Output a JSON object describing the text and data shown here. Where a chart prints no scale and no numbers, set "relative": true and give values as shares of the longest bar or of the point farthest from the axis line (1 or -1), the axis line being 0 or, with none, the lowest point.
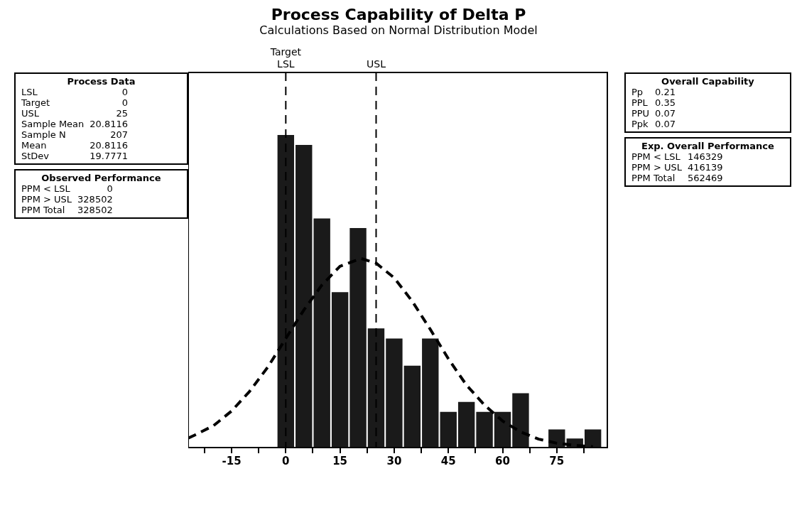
{
  "chart_data": {
    "type": "histogram",
    "title": "Process Capability of Delta P",
    "subtitle": "Calculations Based on Normal Distribution Model",
    "bins": [
      -2.5,
      2.5,
      7.5,
      12.5,
      17.5,
      22.5,
      27.5,
      32.5,
      37.5,
      42.5,
      47.5,
      52.5,
      57.5,
      62.5,
      67.5,
      72.5,
      77.5,
      82.5,
      87.5
    ],
    "values": [
      1,
      0.968,
      0.733,
      0.497,
      0.702,
      0.381,
      0.349,
      0.262,
      0.349,
      0.114,
      0.146,
      0.114,
      0.114,
      0.174,
      0,
      0.058,
      0.029,
      0.058
    ],
    "color": "#1a1a1a",
    "relative": true,
    "series": [
      {
        "type": "line",
        "color": "#000000",
        "line_style": "dashed",
        "x": [
          -27,
          -25,
          -20,
          -15,
          -10,
          -5,
          0,
          5,
          10,
          15,
          20.8,
          25,
          30,
          35,
          40,
          45,
          50,
          55,
          60,
          65,
          70,
          75,
          80,
          85
        ],
        "values": [
          0.03,
          0.041,
          0.07,
          0.117,
          0.18,
          0.257,
          0.349,
          0.44,
          0.52,
          0.58,
          0.605,
          0.59,
          0.543,
          0.468,
          0.378,
          0.284,
          0.2,
          0.136,
          0.085,
          0.05,
          0.027,
          0.014,
          0.007,
          0.003
        ]
      }
    ],
    "xlim": [
      -27,
      89
    ],
    "xticks": [
      {
        "value": -22.5,
        "label": null
      },
      -15,
      {
        "value": -7.5,
        "label": null
      },
      0,
      {
        "value": 7.5,
        "label": null
      },
      15,
      {
        "value": 22.5,
        "label": null
      },
      30,
      {
        "value": 37.5,
        "label": null
      },
      45,
      {
        "value": 52.5,
        "label": null
      },
      60,
      {
        "value": 67.5,
        "label": null
      },
      75,
      {
        "value": 82.5,
        "label": null
      }
    ],
    "ref_lines": [
      {
        "axis": "x",
        "value": 0,
        "label": "LSL",
        "line_style": "dashed"
      },
      {
        "axis": "x",
        "value": 25,
        "label": "USL",
        "line_style": "dashed"
      }
    ],
    "grid": false,
    "legend": false,
    "annotations": [
      "Target",
      "Process Data\nLSL\t0\nTarget\t0\nUSL\t25\nSample Mean\t20.8116\nSample N\t207\nMean\t20.8116\nStDev\t19.7771",
      "Observed Performance\nPPM < LSL\t0\nPPM > USL\t328502\nPPM Total\t328502",
      "Overall Capability\nPp\t0.21\nPPL\t0.35\nPPU\t0.07\nPpk\t0.07",
      "Exp. Overall Performance\nPPM < LSL\t146329\nPPM > USL\t416139\nPPM Total\t562469"
    ]
  }
}
